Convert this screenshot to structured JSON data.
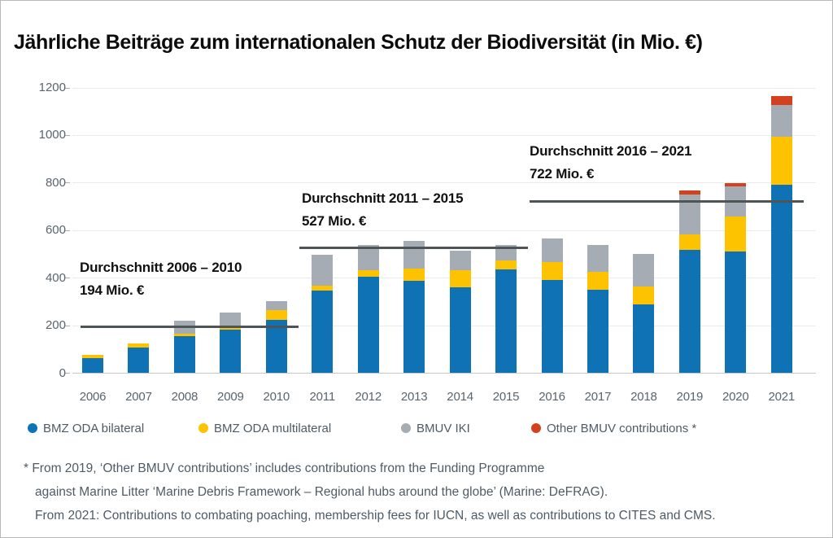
{
  "title": "Jährliche Beiträge zum internationalen Schutz der Biodiversität (in Mio. €)",
  "colors": {
    "bilateral": "#0e72b5",
    "multilateral": "#fdc300",
    "iki": "#a5acb3",
    "other": "#d4411e",
    "average_line": "#4f5456"
  },
  "chart_data": {
    "type": "bar",
    "stacked": true,
    "title": "Jährliche Beiträge zum internationalen Schutz der Biodiversität (in Mio. €)",
    "categories": [
      "2006",
      "2007",
      "2008",
      "2009",
      "2010",
      "2011",
      "2012",
      "2013",
      "2014",
      "2015",
      "2016",
      "2017",
      "2018",
      "2019",
      "2020",
      "2021"
    ],
    "series": [
      {
        "name": "BMZ ODA bilateral",
        "color_key": "bilateral",
        "values": [
          60,
          107,
          155,
          180,
          224,
          345,
          403,
          387,
          358,
          434,
          389,
          349,
          286,
          516,
          510,
          792
        ]
      },
      {
        "name": "BMZ ODA multilateral",
        "color_key": "multilateral",
        "values": [
          15,
          15,
          10,
          8,
          38,
          23,
          27,
          50,
          75,
          40,
          77,
          75,
          77,
          66,
          146,
          200
        ]
      },
      {
        "name": "BMUV IKI",
        "color_key": "iki",
        "values": [
          0,
          0,
          53,
          65,
          40,
          128,
          108,
          116,
          79,
          62,
          100,
          115,
          138,
          168,
          128,
          133
        ]
      },
      {
        "name": "Other BMUV contributions *",
        "color_key": "other",
        "values": [
          0,
          0,
          0,
          0,
          0,
          0,
          0,
          0,
          0,
          0,
          0,
          0,
          0,
          16,
          13,
          38
        ]
      }
    ],
    "totals": [
      75,
      122,
      218,
      253,
      302,
      496,
      538,
      553,
      512,
      536,
      566,
      539,
      501,
      766,
      797,
      1163
    ],
    "xlabel": "",
    "ylabel": "",
    "ylim": [
      0,
      1200
    ],
    "yticks": [
      0,
      200,
      400,
      600,
      800,
      1000,
      1200
    ],
    "grid": "horizontal",
    "legend_position": "bottom",
    "annotations": [
      {
        "label": "Durchschnitt 2006 – 2010",
        "value_label": "194 Mio. €",
        "value": 194,
        "span": [
          "2006",
          "2010"
        ]
      },
      {
        "label": "Durchschnitt 2011 – 2015",
        "value_label": "527 Mio. €",
        "value": 527,
        "span": [
          "2011",
          "2015"
        ]
      },
      {
        "label": "Durchschnitt 2016 – 2021",
        "value_label": "722 Mio. €",
        "value": 722,
        "span": [
          "2016",
          "2021"
        ]
      }
    ]
  },
  "legend": {
    "items": [
      {
        "label": "BMZ ODA bilateral",
        "color_key": "bilateral"
      },
      {
        "label": "BMZ ODA multilateral",
        "color_key": "multilateral"
      },
      {
        "label": "BMUV IKI",
        "color_key": "iki"
      },
      {
        "label": "Other BMUV contributions *",
        "color_key": "other"
      }
    ]
  },
  "footnote": {
    "lines": [
      "* From 2019, ‘Other BMUV contributions’ includes contributions from the Funding Programme",
      "against Marine Litter ‘Marine Debris Framework – Regional hubs around the globe’ (Marine: DeFRAG).",
      "From 2021: Contributions to combating poaching, membership fees for IUCN, as well as contributions to CITES and CMS."
    ]
  }
}
